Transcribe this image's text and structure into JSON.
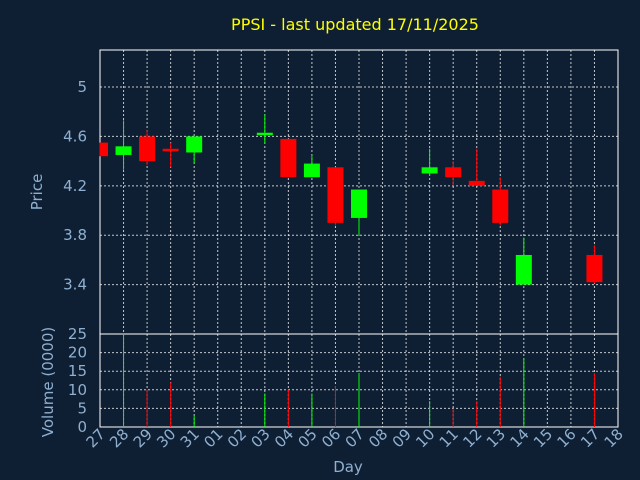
{
  "chart_data": [
    {
      "type": "candlestick",
      "title": "PPSI - last updated 17/11/2025",
      "ylabel": "Price",
      "ylim": [
        3.0,
        5.3
      ],
      "yticks": [
        "3.4",
        "3.8",
        "4.2",
        "4.6",
        "5"
      ],
      "grid": true,
      "colors": {
        "up": "#00ff00",
        "down": "#ff0000",
        "background": "#0f1f33",
        "text": "#8fb0d0",
        "title": "#ffff00"
      },
      "candles": [
        {
          "day": "27",
          "open": 4.55,
          "high": 4.55,
          "low": 4.44,
          "close": 4.44
        },
        {
          "day": "28",
          "open": 4.45,
          "high": 4.73,
          "low": 4.33,
          "close": 4.52
        },
        {
          "day": "29",
          "open": 4.6,
          "high": 4.65,
          "low": 4.37,
          "close": 4.4
        },
        {
          "day": "30",
          "open": 4.5,
          "high": 4.55,
          "low": 4.35,
          "close": 4.48
        },
        {
          "day": "31",
          "open": 4.47,
          "high": 4.6,
          "low": 4.38,
          "close": 4.6
        },
        {
          "day": "03",
          "open": 4.61,
          "high": 4.78,
          "low": 4.54,
          "close": 4.63
        },
        {
          "day": "04",
          "open": 4.58,
          "high": 4.58,
          "low": 4.27,
          "close": 4.27
        },
        {
          "day": "05",
          "open": 4.27,
          "high": 4.45,
          "low": 4.27,
          "close": 4.38
        },
        {
          "day": "06",
          "open": 4.35,
          "high": 4.35,
          "low": 3.88,
          "close": 3.9
        },
        {
          "day": "07",
          "open": 3.94,
          "high": 4.17,
          "low": 3.8,
          "close": 4.17
        },
        {
          "day": "10",
          "open": 4.3,
          "high": 4.5,
          "low": 4.28,
          "close": 4.35
        },
        {
          "day": "11",
          "open": 4.35,
          "high": 4.4,
          "low": 4.2,
          "close": 4.27
        },
        {
          "day": "12",
          "open": 4.24,
          "high": 4.5,
          "low": 4.2,
          "close": 4.2
        },
        {
          "day": "13",
          "open": 4.17,
          "high": 4.27,
          "low": 3.88,
          "close": 3.9
        },
        {
          "day": "14",
          "open": 3.4,
          "high": 3.78,
          "low": 3.4,
          "close": 3.64
        },
        {
          "day": "17",
          "open": 3.64,
          "high": 3.72,
          "low": 3.41,
          "close": 3.42
        }
      ]
    },
    {
      "type": "bar",
      "ylabel": "Volume (0000)",
      "xlabel": "Day",
      "ylim": [
        0,
        25
      ],
      "yticks": [
        "0",
        "5",
        "10",
        "15",
        "20",
        "25"
      ],
      "categories": [
        "27",
        "28",
        "29",
        "30",
        "31",
        "01",
        "02",
        "03",
        "04",
        "05",
        "06",
        "07",
        "08",
        "09",
        "10",
        "11",
        "12",
        "13",
        "14",
        "15",
        "16",
        "17",
        "18"
      ],
      "volumes": [
        {
          "day": "28",
          "value": 25,
          "color": "up"
        },
        {
          "day": "29",
          "value": 10,
          "color": "down"
        },
        {
          "day": "30",
          "value": 12,
          "color": "down"
        },
        {
          "day": "31",
          "value": 3,
          "color": "up"
        },
        {
          "day": "03",
          "value": 9,
          "color": "up"
        },
        {
          "day": "04",
          "value": 10,
          "color": "down"
        },
        {
          "day": "05",
          "value": 9,
          "color": "up"
        },
        {
          "day": "06",
          "value": 11,
          "color": "down"
        },
        {
          "day": "07",
          "value": 14.5,
          "color": "up"
        },
        {
          "day": "10",
          "value": 7,
          "color": "up"
        },
        {
          "day": "11",
          "value": 5,
          "color": "down"
        },
        {
          "day": "12",
          "value": 7,
          "color": "down"
        },
        {
          "day": "13",
          "value": 13.5,
          "color": "down"
        },
        {
          "day": "14",
          "value": 18.5,
          "color": "up"
        },
        {
          "day": "17",
          "value": 14.5,
          "color": "down"
        }
      ]
    }
  ]
}
